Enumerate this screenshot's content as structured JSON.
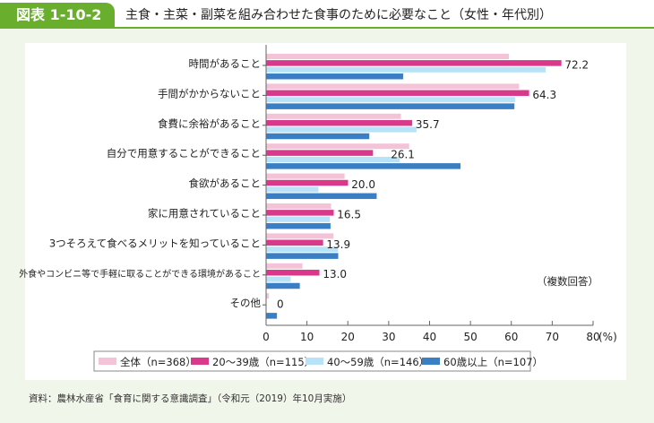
{
  "header": {
    "badge": "図表 1-10-2",
    "title": "主食・主菜・副菜を組み合わせた食事のために必要なこと（女性・年代別）"
  },
  "chart_data": {
    "type": "bar",
    "orientation": "horizontal",
    "categories": [
      "時間があること",
      "手間がかからないこと",
      "食費に余裕があること",
      "自分で用意することができること",
      "食欲があること",
      "家に用意されていること",
      "3つそろえて食べるメリットを知っていること",
      "外食やコンビニ等で手軽に取ることができる環境があること",
      "その他"
    ],
    "series": [
      {
        "name": "全体（n=368）",
        "color": "#f4c3d8",
        "values": [
          59.4,
          61.9,
          33.0,
          35.0,
          19.2,
          15.9,
          16.5,
          8.9,
          0.7
        ]
      },
      {
        "name": "20～39歳（n=115）",
        "color": "#d8398a",
        "values": [
          72.2,
          64.3,
          35.7,
          26.1,
          20.0,
          16.5,
          13.9,
          13.0,
          0
        ]
      },
      {
        "name": "40～59歳（n=146）",
        "color": "#b8e2f8",
        "values": [
          68.4,
          60.9,
          36.8,
          32.7,
          12.8,
          15.6,
          17.6,
          6.0,
          0
        ]
      },
      {
        "name": "60歳以上（n=107）",
        "color": "#3a7fc4",
        "values": [
          33.5,
          60.7,
          25.2,
          47.5,
          27.0,
          15.7,
          17.6,
          8.2,
          2.6
        ]
      }
    ],
    "data_labels": [
      "72.2",
      "64.3",
      "35.7",
      "26.1",
      "20.0",
      "16.5",
      "13.9",
      "13.0",
      "0"
    ],
    "xlim": [
      0,
      80
    ],
    "xticks": [
      "0",
      "10",
      "20",
      "30",
      "40",
      "50",
      "60",
      "70",
      "80"
    ],
    "xunit": "(%)",
    "note": "（複数回答）",
    "legend": "bottom",
    "grid": false
  },
  "source": "資料：農林水産省「食育に関する意識調査」（令和元（2019）年10月実施）"
}
